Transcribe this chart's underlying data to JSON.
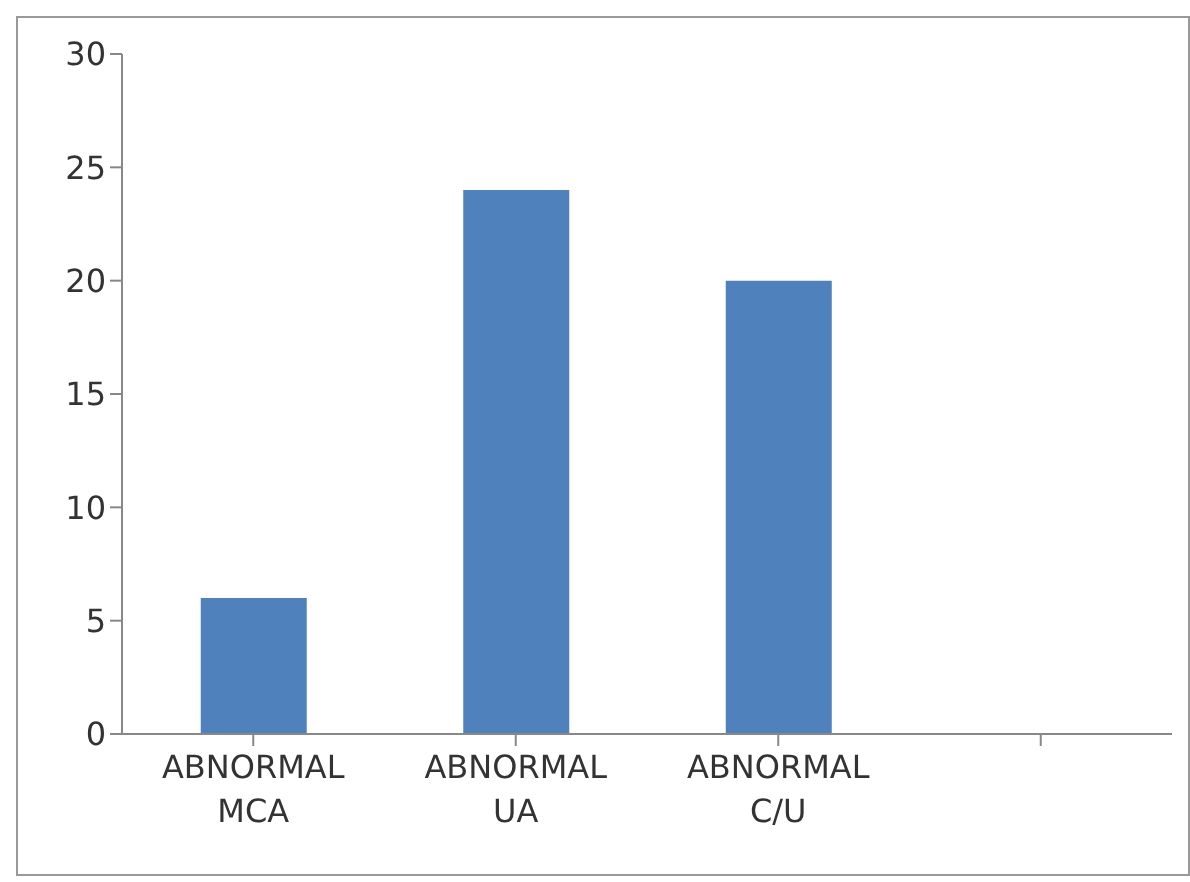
{
  "chart_data": {
    "type": "bar",
    "categories": [
      "ABNORMAL MCA",
      "ABNORMAL UA",
      "ABNORMAL C/U",
      null
    ],
    "values": [
      6,
      24,
      20,
      null
    ],
    "color": "#4f81bd",
    "ylim": [
      0,
      30
    ],
    "yticks": [
      0,
      5,
      10,
      15,
      20,
      25,
      30
    ],
    "grid": false,
    "legend": false
  }
}
